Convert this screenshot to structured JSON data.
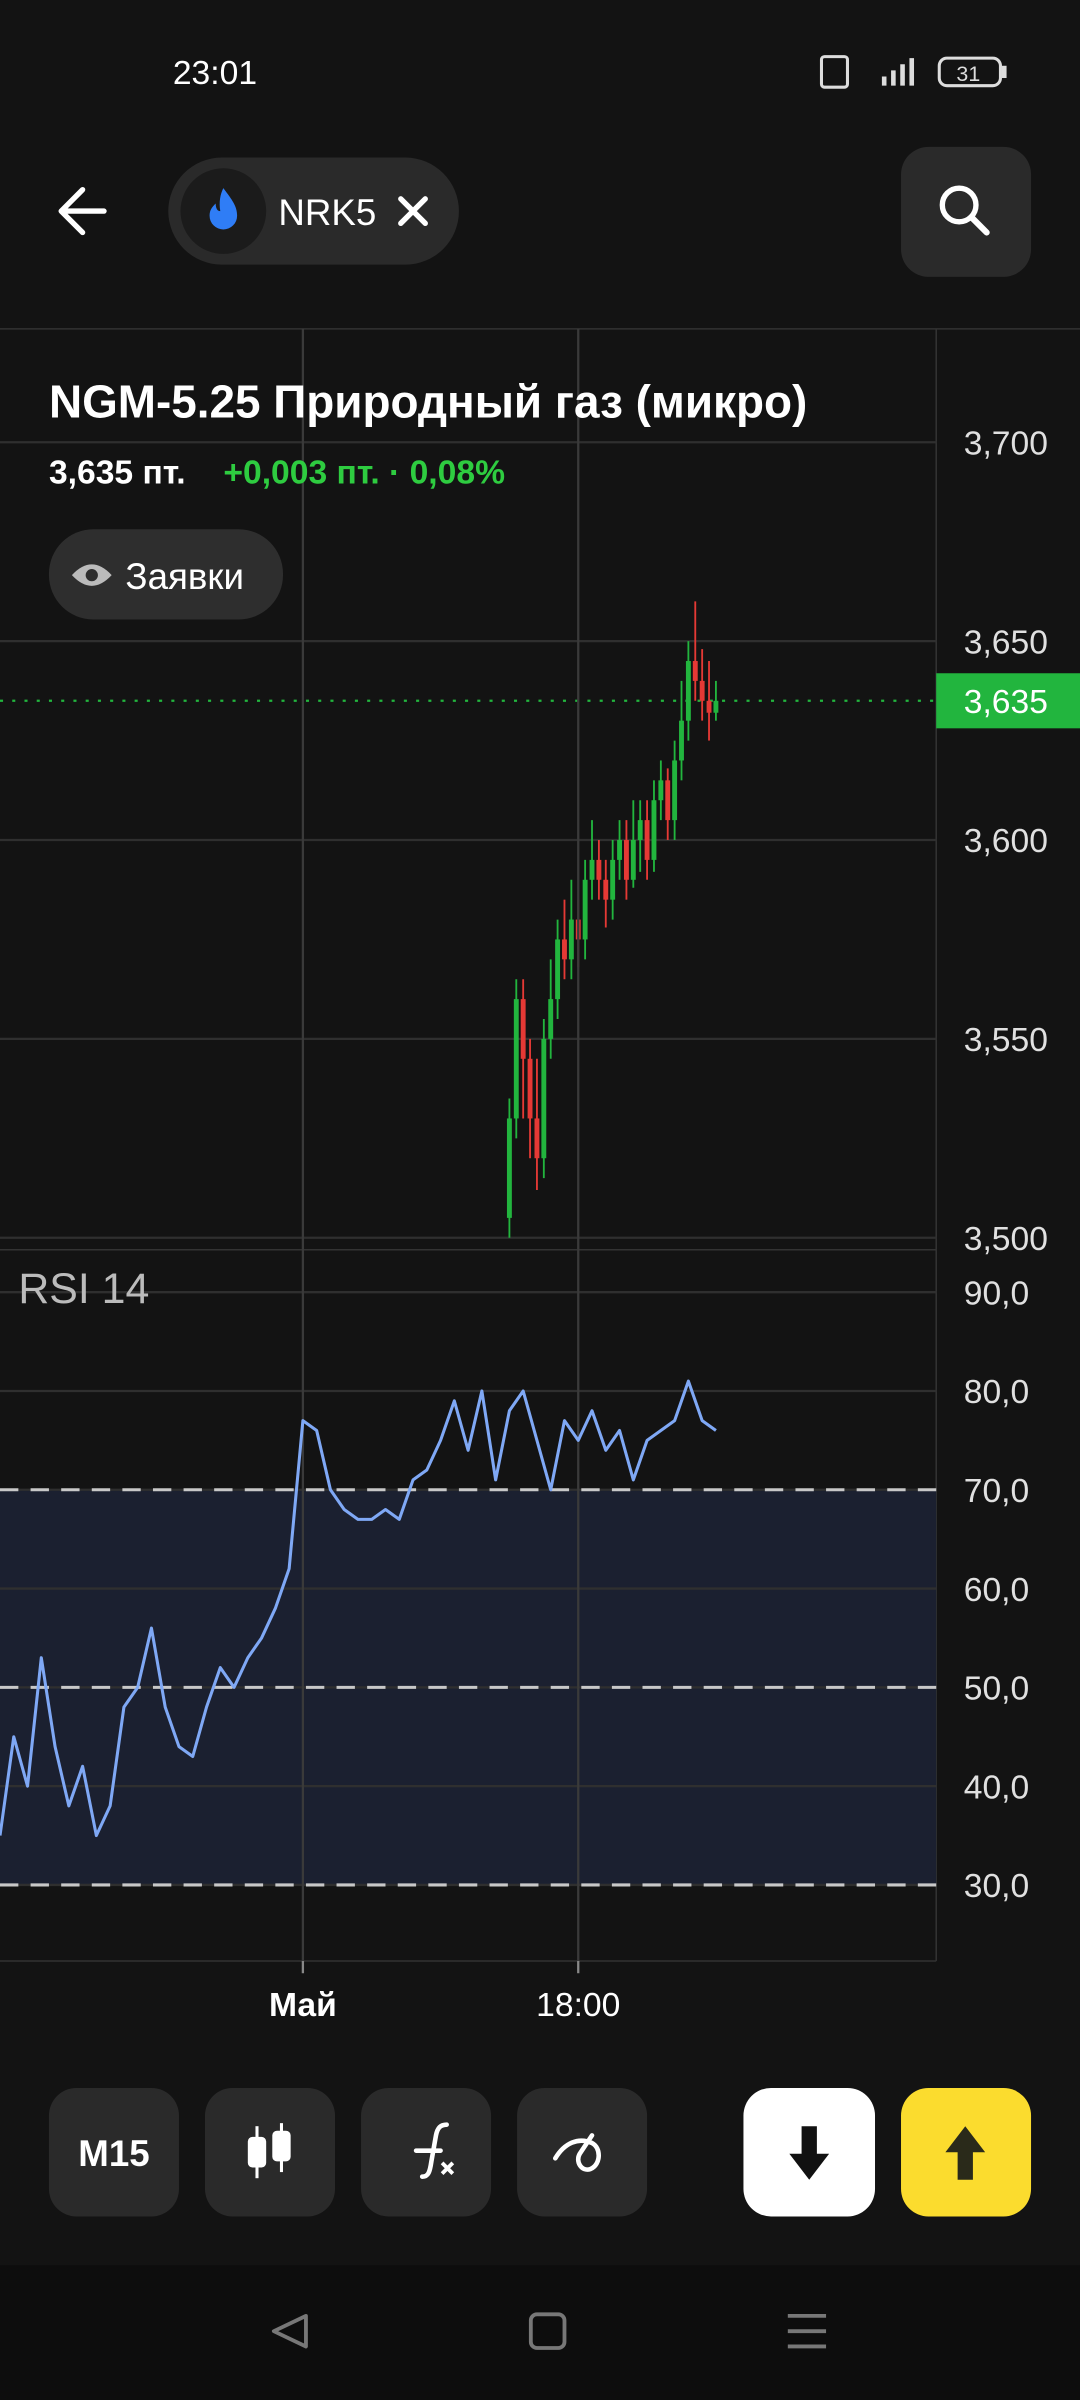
{
  "status_bar": {
    "time": "23:01",
    "battery": "31"
  },
  "header": {
    "ticker": "NRK5"
  },
  "instrument": {
    "title": "NGM-5.25 Природный газ (микро)",
    "price": "3,635 пт.",
    "change": "+0,003 пт. · 0,08%",
    "orders_button": "Заявки"
  },
  "toolbar": {
    "interval": "M15"
  },
  "chart_data": [
    {
      "type": "candlestick",
      "up_color": "#22b53e",
      "down_color": "#e53935",
      "xlim": [
        0,
        136
      ],
      "ylim": [
        3.497,
        3.7285
      ],
      "yticks": [
        {
          "value": 3.5,
          "label": "3,500"
        },
        {
          "value": 3.55,
          "label": "3,550"
        },
        {
          "value": 3.6,
          "label": "3,600"
        },
        {
          "value": 3.65,
          "label": "3,650"
        },
        {
          "value": 3.7,
          "label": "3,700"
        }
      ],
      "last_price": {
        "value": 3.635,
        "label": "3,635"
      },
      "x": [
        74,
        75,
        76,
        77,
        78,
        79,
        80,
        81,
        82,
        83,
        84,
        85,
        86,
        87,
        88,
        89,
        90,
        91,
        92,
        93,
        94,
        95,
        96,
        97,
        98,
        99,
        100,
        101,
        102,
        103,
        104
      ],
      "open": [
        3.505,
        3.53,
        3.56,
        3.545,
        3.53,
        3.52,
        3.55,
        3.56,
        3.575,
        3.57,
        3.58,
        3.575,
        3.59,
        3.595,
        3.59,
        3.585,
        3.595,
        3.6,
        3.59,
        3.6,
        3.605,
        3.595,
        3.61,
        3.615,
        3.605,
        3.62,
        3.63,
        3.645,
        3.64,
        3.635,
        3.632
      ],
      "high": [
        3.535,
        3.565,
        3.565,
        3.55,
        3.545,
        3.555,
        3.57,
        3.58,
        3.585,
        3.59,
        3.585,
        3.595,
        3.605,
        3.6,
        3.595,
        3.6,
        3.605,
        3.605,
        3.61,
        3.61,
        3.61,
        3.615,
        3.62,
        3.618,
        3.625,
        3.64,
        3.65,
        3.66,
        3.648,
        3.645,
        3.64
      ],
      "low": [
        3.5,
        3.525,
        3.53,
        3.52,
        3.512,
        3.515,
        3.545,
        3.555,
        3.565,
        3.565,
        3.568,
        3.57,
        3.585,
        3.585,
        3.578,
        3.58,
        3.59,
        3.585,
        3.588,
        3.592,
        3.59,
        3.592,
        3.605,
        3.6,
        3.6,
        3.615,
        3.625,
        3.635,
        3.63,
        3.625,
        3.63
      ],
      "close": [
        3.53,
        3.56,
        3.545,
        3.53,
        3.52,
        3.55,
        3.56,
        3.575,
        3.57,
        3.58,
        3.575,
        3.59,
        3.595,
        3.59,
        3.585,
        3.595,
        3.6,
        3.59,
        3.6,
        3.605,
        3.595,
        3.61,
        3.615,
        3.605,
        3.62,
        3.63,
        3.645,
        3.64,
        3.635,
        3.632,
        3.635
      ]
    },
    {
      "type": "line",
      "title": "RSI 14",
      "color": "#7fa8f5",
      "xlim": [
        0,
        136
      ],
      "ylim": [
        22.3,
        94.3
      ],
      "xticks": [
        {
          "value": 44,
          "label": "Май"
        },
        {
          "value": 84,
          "label": "18:00"
        }
      ],
      "yticks": [
        {
          "value": 30,
          "label": "30,0"
        },
        {
          "value": 40,
          "label": "40,0"
        },
        {
          "value": 50,
          "label": "50,0"
        },
        {
          "value": 60,
          "label": "60,0"
        },
        {
          "value": 70,
          "label": "70,0"
        },
        {
          "value": 80,
          "label": "80,0"
        },
        {
          "value": 90,
          "label": "90,0"
        }
      ],
      "bands": [
        30,
        50,
        70
      ],
      "zone": [
        30,
        70
      ],
      "x": [
        0,
        2,
        4,
        6,
        8,
        10,
        12,
        14,
        16,
        18,
        20,
        22,
        24,
        26,
        28,
        30,
        32,
        34,
        36,
        38,
        40,
        42,
        44,
        46,
        48,
        50,
        52,
        54,
        56,
        58,
        60,
        62,
        64,
        66,
        68,
        70,
        72,
        74,
        76,
        78,
        80,
        82,
        84,
        86,
        88,
        90,
        92,
        94,
        96,
        98,
        100,
        102,
        104
      ],
      "values": [
        35,
        45,
        40,
        53,
        44,
        38,
        42,
        35,
        38,
        48,
        50,
        56,
        48,
        44,
        43,
        48,
        52,
        50,
        53,
        55,
        58,
        62,
        77,
        76,
        70,
        68,
        67,
        67,
        68,
        67,
        71,
        72,
        75,
        79,
        74,
        80,
        71,
        78,
        80,
        75,
        70,
        77,
        75,
        78,
        74,
        76,
        71,
        75,
        76,
        77,
        81,
        77,
        76
      ]
    }
  ]
}
